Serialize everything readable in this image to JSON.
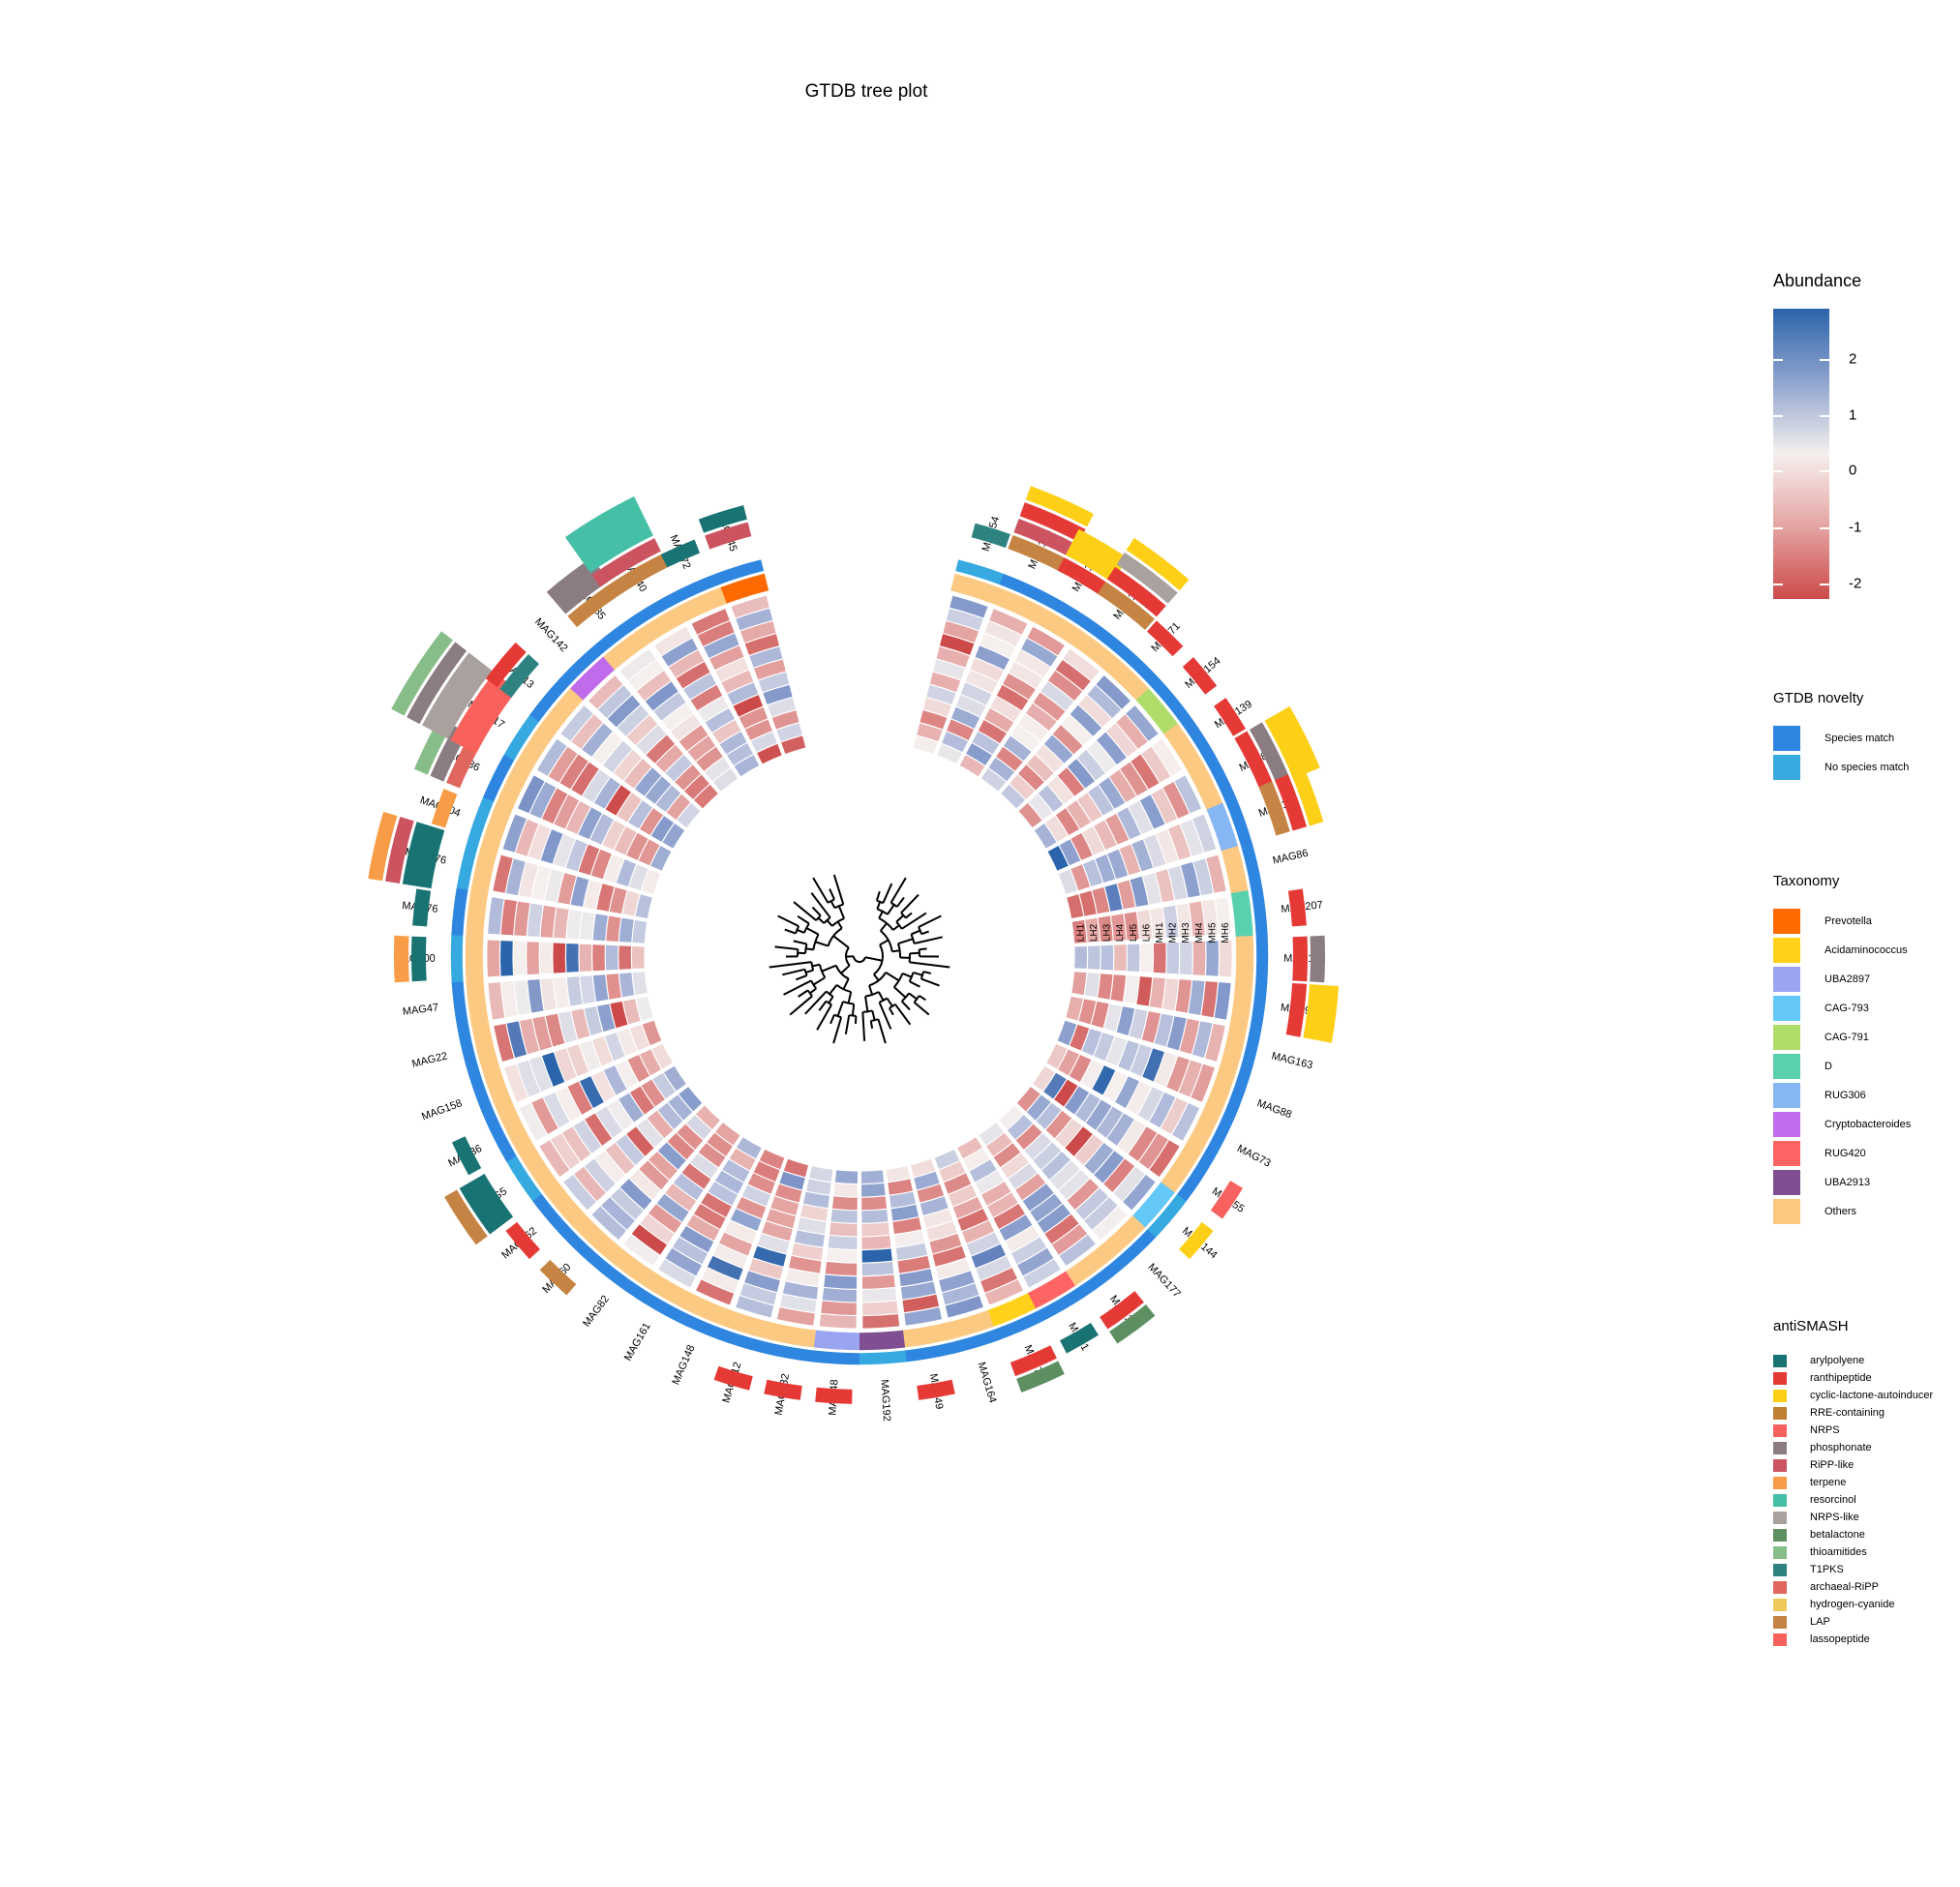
{
  "title": "GTDB tree plot",
  "legend_abundance": {
    "title": "Abundance",
    "ticks": [
      "2",
      "1",
      "0",
      "-1",
      "-2"
    ],
    "colors": [
      "#2B64AA",
      "#8FA3CE",
      "#F5F0EE",
      "#E4A4A2",
      "#CC4A4A"
    ]
  },
  "legend_novelty": {
    "title": "GTDB novelty",
    "items": [
      {
        "label": "Species match",
        "color": "#2E86E0"
      },
      {
        "label": "No species match",
        "color": "#36A9E1"
      }
    ]
  },
  "legend_taxonomy": {
    "title": "Taxonomy",
    "items": [
      {
        "label": "Prevotella",
        "color": "#FF6A00"
      },
      {
        "label": "Acidaminococcus",
        "color": "#FFD11A"
      },
      {
        "label": "UBA2897",
        "color": "#9BA4F0"
      },
      {
        "label": "CAG-793",
        "color": "#63C8F7"
      },
      {
        "label": "CAG-791",
        "color": "#B0DD6A"
      },
      {
        "label": "D",
        "color": "#59D1AE"
      },
      {
        "label": "RUG306",
        "color": "#87B6F4"
      },
      {
        "label": "Cryptobacteroides",
        "color": "#C06BEB"
      },
      {
        "label": "RUG420",
        "color": "#FF6464"
      },
      {
        "label": "UBA2913",
        "color": "#7F4F92"
      },
      {
        "label": "Others",
        "color": "#FCC983"
      }
    ]
  },
  "legend_antismash": {
    "title": "antiSMASH",
    "items": [
      {
        "label": "arylpolyene",
        "color": "#1A7373"
      },
      {
        "label": "ranthipeptide",
        "color": "#E53935"
      },
      {
        "label": "cyclic-lactone-autoinducer",
        "color": "#FDD017"
      },
      {
        "label": "RRE-containing",
        "color": "#C17F33"
      },
      {
        "label": "NRPS",
        "color": "#F76160"
      },
      {
        "label": "phosphonate",
        "color": "#8A7C80"
      },
      {
        "label": "RiPP-like",
        "color": "#CC5360"
      },
      {
        "label": "terpene",
        "color": "#F89C47"
      },
      {
        "label": "resorcinol",
        "color": "#45BFA5"
      },
      {
        "label": "NRPS-like",
        "color": "#A9A19E"
      },
      {
        "label": "betalactone",
        "color": "#5E8F62"
      },
      {
        "label": "thioamitides",
        "color": "#86BD88"
      },
      {
        "label": "T1PKS",
        "color": "#2E8381"
      },
      {
        "label": "archaeal-RiPP",
        "color": "#E0675E"
      },
      {
        "label": "hydrogen-cyanide",
        "color": "#EDC95B"
      },
      {
        "label": "LAP",
        "color": "#C58443"
      },
      {
        "label": "lassopeptide",
        "color": "#F9625C"
      }
    ]
  },
  "chart_data": {
    "type": "heatmap",
    "layout": "circular-tree",
    "samples": [
      "LH1",
      "LH2",
      "LH3",
      "LH4",
      "LH5",
      "LH6",
      "MH1",
      "MH2",
      "MH3",
      "MH4",
      "MH5",
      "MH6"
    ],
    "value_range": [
      -2,
      2.8
    ],
    "tips": [
      {
        "mag": "MAG54",
        "novelty": "No species match",
        "taxonomy": "Others",
        "bgc": [
          [
            "T1PKS",
            1
          ]
        ]
      },
      {
        "mag": "MAG134",
        "novelty": "Species match",
        "taxonomy": "Others",
        "bgc": [
          [
            "LAP",
            1
          ],
          [
            "RiPP-like",
            1
          ],
          [
            "ranthipeptide",
            1
          ],
          [
            "cyclic-lactone-autoinducer",
            1
          ]
        ]
      },
      {
        "mag": "MAG196",
        "novelty": "Species match",
        "taxonomy": "Others",
        "bgc": [
          [
            "ranthipeptide",
            1
          ],
          [
            "cyclic-lactone-autoinducer",
            2
          ]
        ]
      },
      {
        "mag": "MAG135",
        "novelty": "Species match",
        "taxonomy": "Others",
        "bgc": [
          [
            "LAP",
            1
          ],
          [
            "ranthipeptide",
            1
          ],
          [
            "NRPS-like",
            1
          ],
          [
            "cyclic-lactone-autoinducer",
            1
          ]
        ]
      },
      {
        "mag": "MAG71",
        "novelty": "Species match",
        "taxonomy": "Others",
        "bgc": [
          [
            "ranthipeptide",
            1
          ]
        ]
      },
      {
        "mag": "MAG154",
        "novelty": "Species match",
        "taxonomy": "CAG-791",
        "bgc": [
          [
            "ranthipeptide",
            1
          ]
        ]
      },
      {
        "mag": "MAG139",
        "novelty": "Species match",
        "taxonomy": "Others",
        "bgc": [
          [
            "ranthipeptide",
            1
          ]
        ]
      },
      {
        "mag": "MAG81",
        "novelty": "Species match",
        "taxonomy": "Others",
        "bgc": [
          [
            "ranthipeptide",
            1
          ],
          [
            "phosphonate",
            1
          ],
          [
            "cyclic-lactone-autoinducer",
            2
          ]
        ]
      },
      {
        "mag": "MAG110",
        "novelty": "Species match",
        "taxonomy": "RUG306",
        "bgc": [
          [
            "LAP",
            1
          ],
          [
            "ranthipeptide",
            1
          ],
          [
            "cyclic-lactone-autoinducer",
            1
          ]
        ]
      },
      {
        "mag": "MAG86",
        "novelty": "Species match",
        "taxonomy": "Others",
        "bgc": []
      },
      {
        "mag": "MAG207",
        "novelty": "Species match",
        "taxonomy": "D",
        "bgc": [
          [
            "ranthipeptide",
            1
          ]
        ]
      },
      {
        "mag": "MAG152",
        "novelty": "Species match",
        "taxonomy": "Others",
        "bgc": [
          [
            "ranthipeptide",
            1
          ],
          [
            "phosphonate",
            1
          ]
        ]
      },
      {
        "mag": "MAG96",
        "novelty": "Species match",
        "taxonomy": "Others",
        "bgc": [
          [
            "ranthipeptide",
            1
          ],
          [
            "cyclic-lactone-autoinducer",
            2
          ]
        ]
      },
      {
        "mag": "MAG163",
        "novelty": "Species match",
        "taxonomy": "Others",
        "bgc": []
      },
      {
        "mag": "MAG88",
        "novelty": "Species match",
        "taxonomy": "Others",
        "bgc": []
      },
      {
        "mag": "MAG73",
        "novelty": "Species match",
        "taxonomy": "Others",
        "bgc": []
      },
      {
        "mag": "MAG55",
        "novelty": "Species match",
        "taxonomy": "Others",
        "bgc": [
          [
            "NRPS",
            1
          ]
        ]
      },
      {
        "mag": "MAG144",
        "novelty": "No species match",
        "taxonomy": "CAG-793",
        "bgc": [
          [
            "cyclic-lactone-autoinducer",
            1
          ]
        ]
      },
      {
        "mag": "MAG177",
        "novelty": "Species match",
        "taxonomy": "Others",
        "bgc": []
      },
      {
        "mag": "MAG108",
        "novelty": "Species match",
        "taxonomy": "Others",
        "bgc": [
          [
            "ranthipeptide",
            1
          ],
          [
            "betalactone",
            1
          ]
        ]
      },
      {
        "mag": "MAG1",
        "novelty": "Species match",
        "taxonomy": "RUG420",
        "bgc": [
          [
            "arylpolyene",
            1
          ]
        ]
      },
      {
        "mag": "MAG74",
        "novelty": "Species match",
        "taxonomy": "Acidaminococcus",
        "bgc": [
          [
            "ranthipeptide",
            1
          ],
          [
            "betalactone",
            1
          ]
        ]
      },
      {
        "mag": "MAG164",
        "novelty": "Species match",
        "taxonomy": "Others",
        "bgc": []
      },
      {
        "mag": "MAG49",
        "novelty": "Species match",
        "taxonomy": "Others",
        "bgc": [
          [
            "ranthipeptide",
            1
          ]
        ]
      },
      {
        "mag": "MAG192",
        "novelty": "No species match",
        "taxonomy": "UBA2913",
        "bgc": []
      },
      {
        "mag": "MAG48",
        "novelty": "Species match",
        "taxonomy": "UBA2897",
        "bgc": [
          [
            "ranthipeptide",
            1
          ]
        ]
      },
      {
        "mag": "MAG132",
        "novelty": "Species match",
        "taxonomy": "Others",
        "bgc": [
          [
            "ranthipeptide",
            1
          ]
        ]
      },
      {
        "mag": "MAG212",
        "novelty": "Species match",
        "taxonomy": "Others",
        "bgc": [
          [
            "ranthipeptide",
            1
          ]
        ]
      },
      {
        "mag": "MAG148",
        "novelty": "Species match",
        "taxonomy": "Others",
        "bgc": []
      },
      {
        "mag": "MAG161",
        "novelty": "Species match",
        "taxonomy": "Others",
        "bgc": []
      },
      {
        "mag": "MAG82",
        "novelty": "Species match",
        "taxonomy": "Others",
        "bgc": []
      },
      {
        "mag": "MAG60",
        "novelty": "Species match",
        "taxonomy": "Others",
        "bgc": [
          [
            "LAP",
            1
          ]
        ]
      },
      {
        "mag": "MAG162",
        "novelty": "Species match",
        "taxonomy": "Others",
        "bgc": [
          [
            "ranthipeptide",
            1
          ]
        ]
      },
      {
        "mag": "MAG5",
        "novelty": "No species match",
        "taxonomy": "Others",
        "bgc": [
          [
            "arylpolyene",
            2
          ],
          [
            "LAP",
            1
          ]
        ]
      },
      {
        "mag": "MAG36",
        "novelty": "Species match",
        "taxonomy": "Others",
        "bgc": [
          [
            "arylpolyene",
            1
          ]
        ]
      },
      {
        "mag": "MAG158",
        "novelty": "Species match",
        "taxonomy": "Others",
        "bgc": []
      },
      {
        "mag": "MAG22",
        "novelty": "Species match",
        "taxonomy": "Others",
        "bgc": []
      },
      {
        "mag": "MAG47",
        "novelty": "Species match",
        "taxonomy": "Others",
        "bgc": []
      },
      {
        "mag": "MAG100",
        "novelty": "No species match",
        "taxonomy": "Others",
        "bgc": [
          [
            "arylpolyene",
            1
          ],
          [
            "terpene",
            1
          ]
        ]
      },
      {
        "mag": "MAG76",
        "novelty": "Species match",
        "taxonomy": "Others",
        "bgc": [
          [
            "arylpolyene",
            1
          ]
        ]
      },
      {
        "mag": "MAG176",
        "novelty": "No species match",
        "taxonomy": "Others",
        "bgc": [
          [
            "arylpolyene",
            2
          ],
          [
            "RiPP-like",
            1
          ],
          [
            "terpene",
            1
          ]
        ]
      },
      {
        "mag": "MAG104",
        "novelty": "No species match",
        "taxonomy": "Others",
        "bgc": [
          [
            "terpene",
            1
          ]
        ]
      },
      {
        "mag": "MAG136",
        "novelty": "Species match",
        "taxonomy": "Others",
        "bgc": [
          [
            "archaeal-RiPP",
            1
          ],
          [
            "phosphonate",
            1
          ],
          [
            "thioamitides",
            1
          ]
        ]
      },
      {
        "mag": "MAG117",
        "novelty": "No species match",
        "taxonomy": "Others",
        "bgc": [
          [
            "lassopeptide",
            2
          ],
          [
            "NRPS-like",
            2
          ],
          [
            "phosphonate",
            1
          ],
          [
            "thioamitides",
            1
          ]
        ]
      },
      {
        "mag": "MAG13",
        "novelty": "Species match",
        "taxonomy": "Others",
        "bgc": [
          [
            "T1PKS",
            1
          ],
          [
            "ranthipeptide",
            1
          ]
        ]
      },
      {
        "mag": "MAG142",
        "novelty": "Species match",
        "taxonomy": "Cryptobacteroides",
        "bgc": []
      },
      {
        "mag": "MAG185",
        "novelty": "Species match",
        "taxonomy": "Others",
        "bgc": [
          [
            "LAP",
            1
          ],
          [
            "phosphonate",
            2
          ]
        ]
      },
      {
        "mag": "MAG40",
        "novelty": "Species match",
        "taxonomy": "Others",
        "bgc": [
          [
            "LAP",
            1
          ],
          [
            "RiPP-like",
            1
          ],
          [
            "resorcinol",
            3
          ]
        ]
      },
      {
        "mag": "MAG72",
        "novelty": "Species match",
        "taxonomy": "Others",
        "bgc": [
          [
            "arylpolyene",
            1
          ]
        ]
      },
      {
        "mag": "MAG145",
        "novelty": "Species match",
        "taxonomy": "Prevotella",
        "bgc": [
          [
            "RiPP-like",
            1
          ],
          [
            "arylpolyene",
            1
          ]
        ]
      }
    ]
  }
}
